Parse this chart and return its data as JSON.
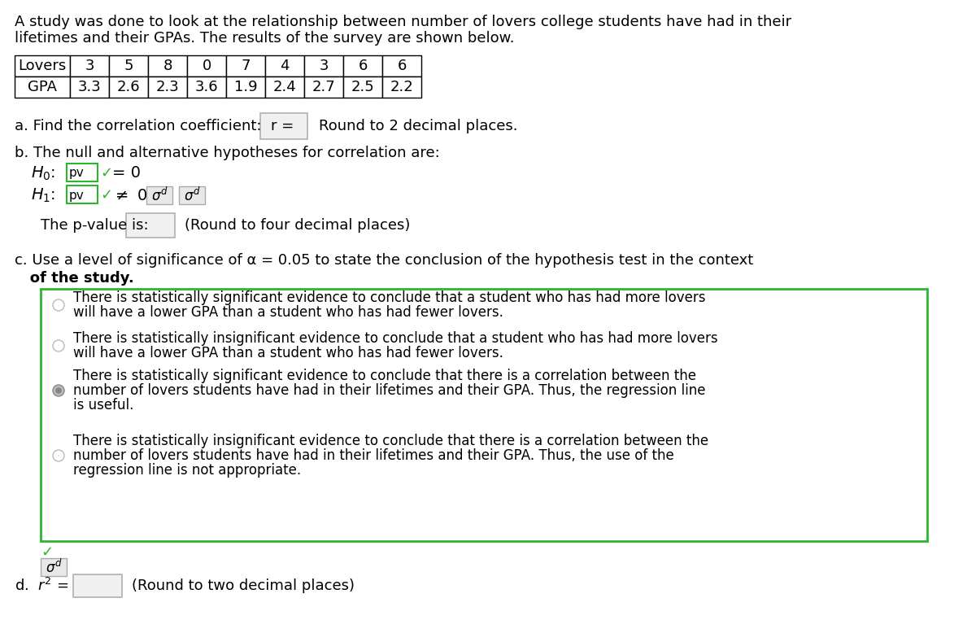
{
  "title_line1": "A study was done to look at the relationship between number of lovers college students have had in their",
  "title_line2": "lifetimes and their GPAs. The results of the survey are shown below.",
  "lovers_row": [
    "Lovers",
    "3",
    "5",
    "8",
    "0",
    "7",
    "4",
    "3",
    "6",
    "6"
  ],
  "gpa_row": [
    "GPA",
    "3.3",
    "2.6",
    "2.3",
    "3.6",
    "1.9",
    "2.4",
    "2.7",
    "2.5",
    "2.2"
  ],
  "part_a_label": "a. Find the correlation coefficient:  r =",
  "part_a_suffix": "Round to 2 decimal places.",
  "part_b_label": "b. The null and alternative hypotheses for correlation are:",
  "pvalue_label": "The p-value is:",
  "pvalue_suffix": "(Round to four decimal places)",
  "part_c_line1": "c. Use a level of significance of α = 0.05 to state the conclusion of the hypothesis test in the context",
  "part_c_line2": "   of the study.",
  "option1_line1": "There is statistically significant evidence to conclude that a student who has had more lovers",
  "option1_line2": "will have a lower GPA than a student who has had fewer lovers.",
  "option2_line1": "There is statistically insignificant evidence to conclude that a student who has had more lovers",
  "option2_line2": "will have a lower GPA than a student who has had fewer lovers.",
  "option3_line1": "There is statistically significant evidence to conclude that there is a correlation between the",
  "option3_line2": "number of lovers students have had in their lifetimes and their GPA. Thus, the regression line",
  "option3_line3": "is useful.",
  "option4_line1": "There is statistically insignificant evidence to conclude that there is a correlation between the",
  "option4_line2": "number of lovers students have had in their lifetimes and their GPA. Thus, the use of the",
  "option4_line3": "regression line is not appropriate.",
  "part_d_suffix": "(Round to two decimal places)",
  "selected_option": 2,
  "green_color": "#2db52d",
  "gray_color": "#aaaaaa",
  "bg_color": "#ffffff",
  "text_color": "#000000",
  "font_size": 13
}
